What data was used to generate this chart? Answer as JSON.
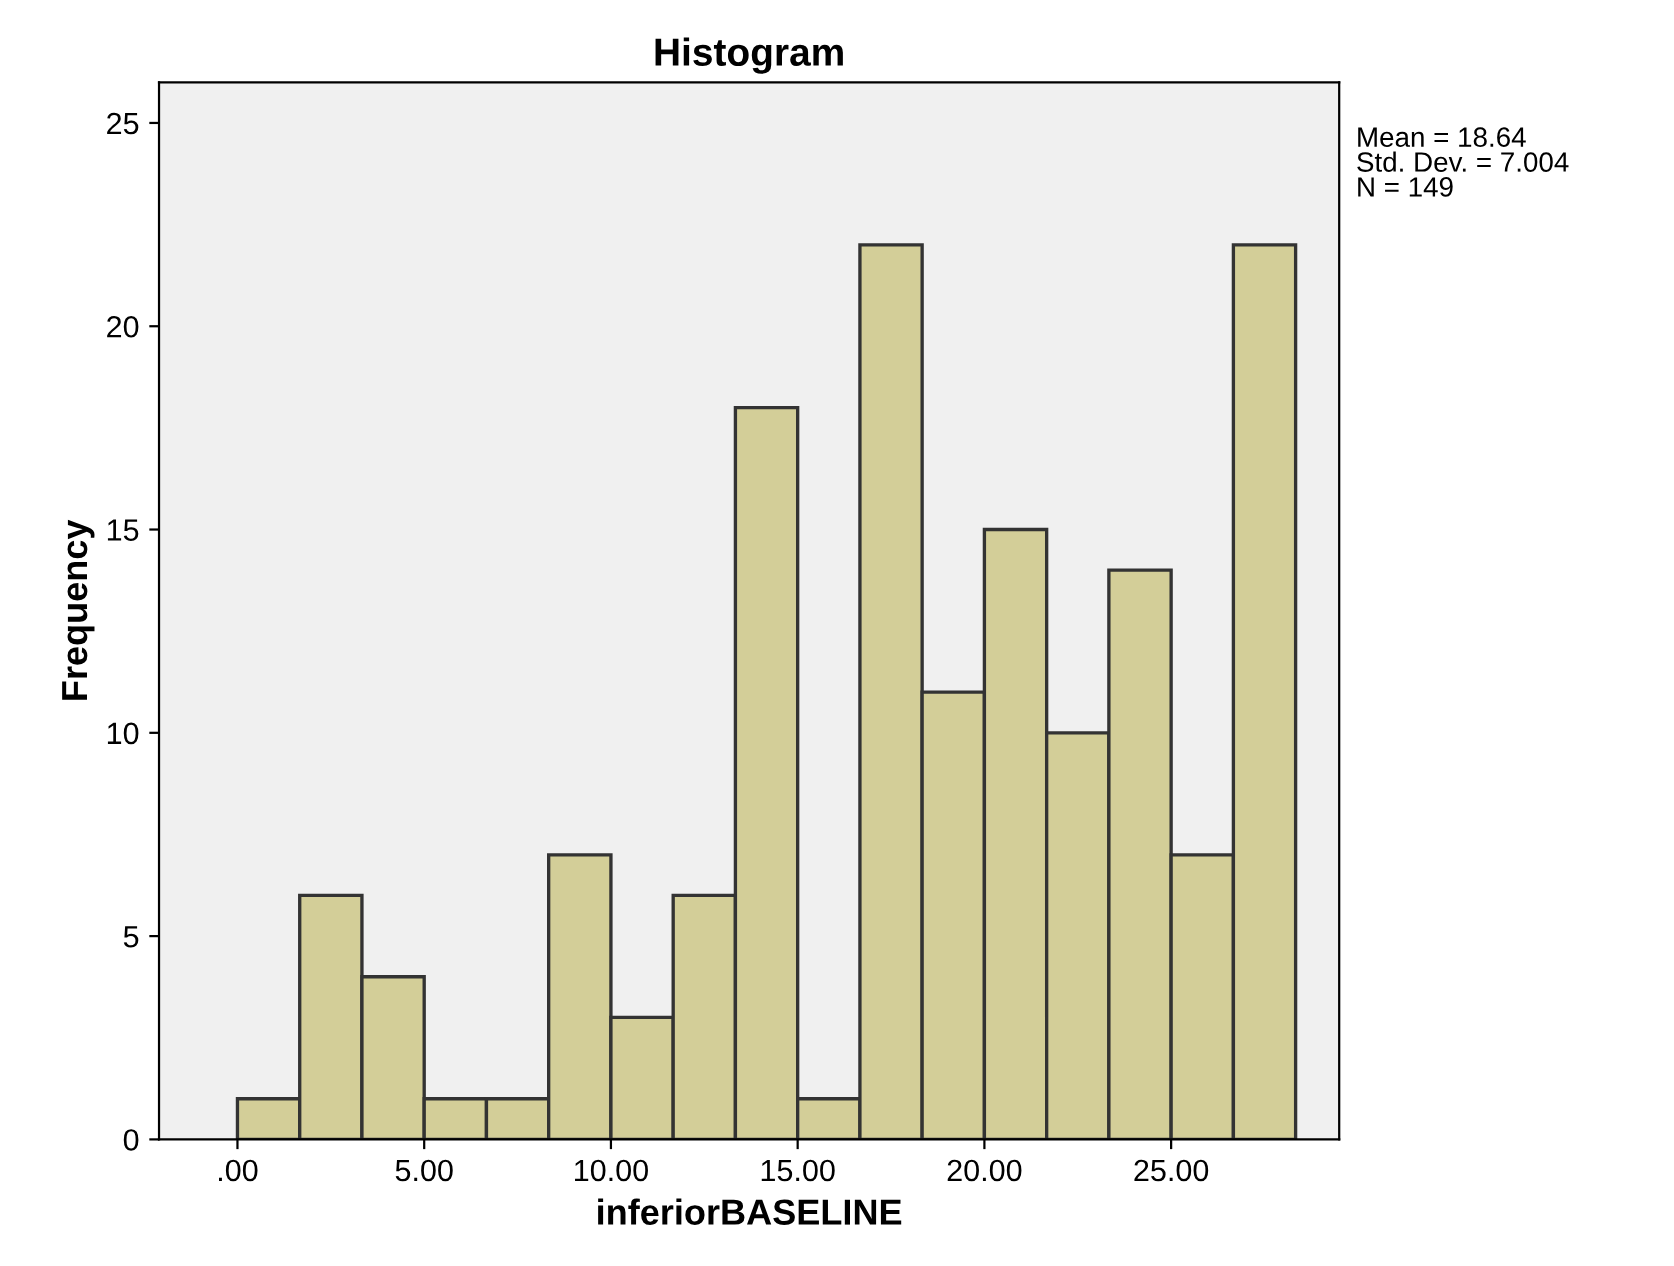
{
  "chart_data": {
    "type": "histogram",
    "title": "Histogram",
    "xlabel": "inferiorBASELINE",
    "ylabel": "Frequency",
    "bins": [
      0,
      1.667,
      3.333,
      5,
      6.667,
      8.333,
      10,
      11.667,
      13.333,
      15,
      16.667,
      18.333,
      20,
      21.667,
      23.333,
      25,
      26.667,
      28.333
    ],
    "values": [
      1,
      6,
      4,
      1,
      1,
      7,
      3,
      6,
      18,
      1,
      22,
      11,
      15,
      10,
      14,
      7,
      22
    ],
    "color": "#d3ce98",
    "xlim": [
      -2.1,
      29.5
    ],
    "ylim": [
      0,
      26
    ],
    "xticks": [
      {
        "value": 0,
        "label": ".00"
      },
      {
        "value": 5,
        "label": "5.00"
      },
      {
        "value": 10,
        "label": "10.00"
      },
      {
        "value": 15,
        "label": "15.00"
      },
      {
        "value": 20,
        "label": "20.00"
      },
      {
        "value": 25,
        "label": "25.00"
      }
    ],
    "yticks": [
      0,
      5,
      10,
      15,
      20,
      25
    ],
    "grid": false,
    "annotations": [
      "Mean = 18.64\nStd. Dev. = 7.004\nN = 149"
    ]
  }
}
